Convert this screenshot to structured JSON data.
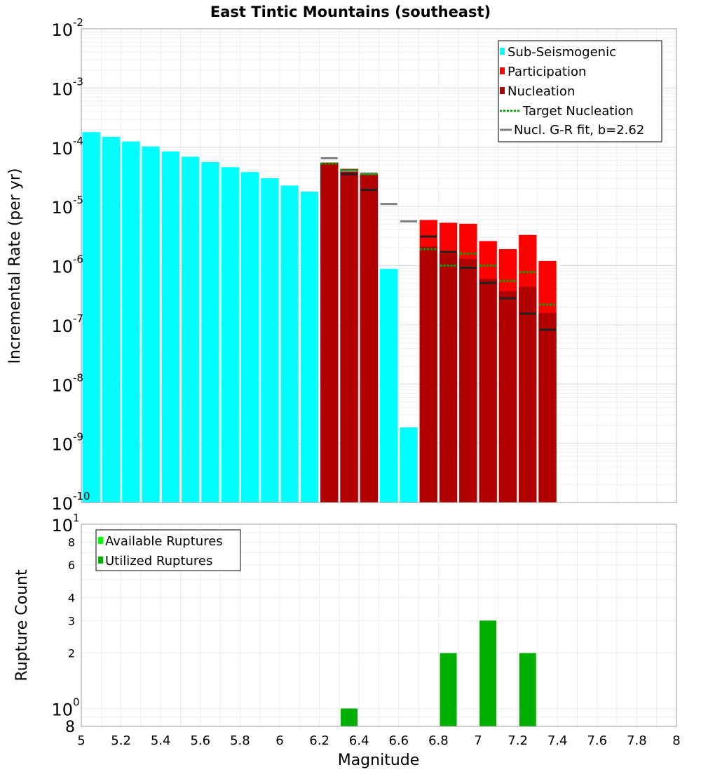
{
  "chart_data": [
    {
      "type": "bar",
      "title": "East Tintic Mountains (southeast)",
      "xlabel": "",
      "ylabel": "Incremental Rate (per yr)",
      "yscale": "log",
      "xlim": [
        5,
        8
      ],
      "ylim": [
        1e-10,
        0.01
      ],
      "ytick_exponents": [
        -10,
        -9,
        -8,
        -7,
        -6,
        -5,
        -4,
        -3,
        -2
      ],
      "legend": {
        "position": "top-right",
        "entries": [
          {
            "label": "Sub-Seismogenic",
            "color": "#00ffff",
            "kind": "bar"
          },
          {
            "label": "Participation",
            "color": "#ff0000",
            "kind": "bar"
          },
          {
            "label": "Nucleation",
            "color": "#b00000",
            "kind": "bar"
          },
          {
            "label": "Target Nucleation",
            "color": "#00aa00",
            "kind": "dotted"
          },
          {
            "label": "Nucl. G-R fit, b=2.62",
            "color": "#808080",
            "kind": "line"
          }
        ]
      },
      "bin_width": 0.1,
      "series": [
        {
          "name": "Sub-Seismogenic",
          "color": "#00ffff",
          "x": [
            5.05,
            5.15,
            5.25,
            5.35,
            5.45,
            5.55,
            5.65,
            5.75,
            5.85,
            5.95,
            6.05,
            6.15,
            6.55,
            6.65
          ],
          "values": [
            0.00018,
            0.00015,
            0.000125,
            0.000103,
            8.5e-05,
            6.9e-05,
            5.6e-05,
            4.6e-05,
            3.8e-05,
            3e-05,
            2.25e-05,
            1.78e-05,
            8.8e-07,
            1.85e-09
          ]
        },
        {
          "name": "Participation",
          "color": "#ff0000",
          "x": [
            6.25,
            6.35,
            6.45,
            6.75,
            6.85,
            6.95,
            7.05,
            7.15,
            7.25,
            7.35
          ],
          "values": [
            5.5e-05,
            4.3e-05,
            3.6e-05,
            5.9e-06,
            5.3e-06,
            5.1e-06,
            2.6e-06,
            1.9e-06,
            3.3e-06,
            1.2e-06
          ]
        },
        {
          "name": "Nucleation",
          "color": "#b00000",
          "x": [
            6.25,
            6.35,
            6.45,
            6.75,
            6.85,
            6.95,
            7.05,
            7.15,
            7.25,
            7.35
          ],
          "values": [
            5.5e-05,
            4.3e-05,
            3.6e-05,
            2.1e-06,
            1.6e-06,
            1.3e-06,
            6e-07,
            3.7e-07,
            4.4e-07,
            1.6e-07
          ]
        },
        {
          "name": "Target Nucleation",
          "color": "#00aa00",
          "x": [
            6.25,
            6.35,
            6.45,
            6.75,
            6.85,
            6.95,
            7.05,
            7.15,
            7.25,
            7.35
          ],
          "values": [
            5.3e-05,
            4.1e-05,
            3.5e-05,
            1.9e-06,
            1e-06,
            1.6e-06,
            1e-06,
            5.5e-07,
            7.8e-07,
            2.2e-07
          ]
        },
        {
          "name": "Nucl. G-R fit, b=2.62",
          "color": "#808080",
          "x": [
            6.25,
            6.35,
            6.45,
            6.55,
            6.65
          ],
          "values": [
            6.5e-05,
            4e-05,
            3.6e-05,
            1.1e-05,
            5.6e-06
          ]
        },
        {
          "name": "Black markers",
          "color": "#202020",
          "x": [
            6.35,
            6.45,
            6.75,
            6.85,
            6.95,
            7.05,
            7.15,
            7.25,
            7.35
          ],
          "values": [
            3.5e-05,
            1.9e-05,
            3.1e-06,
            1.7e-06,
            9.2e-07,
            5.1e-07,
            2.8e-07,
            1.55e-07,
            8.3e-08
          ]
        }
      ]
    },
    {
      "type": "bar",
      "title": "",
      "xlabel": "Magnitude",
      "ylabel": "Rupture Count",
      "yscale": "log",
      "xlim": [
        5,
        8
      ],
      "ylim": [
        0.8,
        10
      ],
      "xticks": [
        "5",
        "5.2",
        "5.4",
        "5.6",
        "5.8",
        "6",
        "6.2",
        "6.4",
        "6.6",
        "6.8",
        "7",
        "7.2",
        "7.4",
        "7.6",
        "7.8",
        "8"
      ],
      "y_decade_ticks": [
        1,
        10
      ],
      "y_minor_labels": [
        "8",
        "2",
        "3",
        "4",
        "6",
        "8"
      ],
      "legend": {
        "position": "top-left",
        "entries": [
          {
            "label": "Available Ruptures",
            "color": "#00ff00",
            "kind": "bar"
          },
          {
            "label": "Utilized Ruptures",
            "color": "#00b000",
            "kind": "bar"
          }
        ]
      },
      "series": [
        {
          "name": "Utilized Ruptures",
          "color": "#00b000",
          "x": [
            6.35,
            6.85,
            7.05,
            7.25
          ],
          "values": [
            1,
            2,
            3,
            2
          ]
        }
      ]
    }
  ]
}
